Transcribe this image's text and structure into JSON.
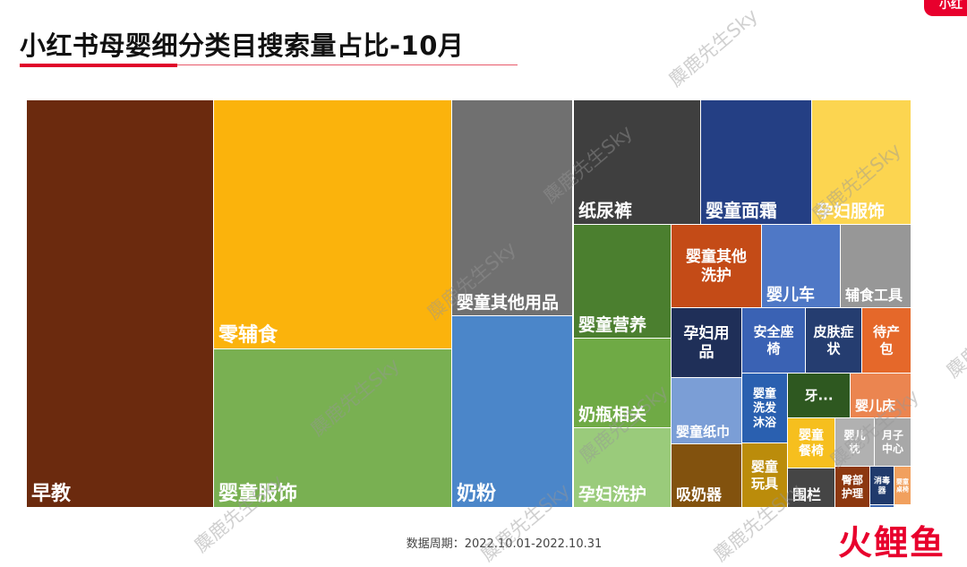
{
  "title": "小红书母婴细分类目搜索量占比-10月",
  "period": "数据周期：2022.10.01-2022.10.31",
  "logo": "火鲤鱼",
  "badge": "小红",
  "watermark": "麋鹿先生Sky",
  "chart_data": {
    "type": "treemap",
    "title": "小红书母婴细分类目搜索量占比-10月",
    "categories": [
      {
        "label": "早教",
        "color": "#6b2a0e"
      },
      {
        "label": "零辅食",
        "color": "#fbb30c"
      },
      {
        "label": "婴童服饰",
        "color": "#79b052"
      },
      {
        "label": "婴童其他用品",
        "color": "#707070"
      },
      {
        "label": "奶粉",
        "color": "#4b86c9"
      },
      {
        "label": "纸尿裤",
        "color": "#3f3f3f"
      },
      {
        "label": "婴童营养",
        "color": "#4b7f2f"
      },
      {
        "label": "奶瓶相关",
        "color": "#6faa45"
      },
      {
        "label": "孕妇洗护",
        "color": "#9acb7b"
      },
      {
        "label": "婴童面霜",
        "color": "#243f84"
      },
      {
        "label": "孕妇服饰",
        "color": "#fcd550"
      },
      {
        "label": "婴童其他\n洗护",
        "color": "#c44b17"
      },
      {
        "label": "婴儿车",
        "color": "#4f78c6"
      },
      {
        "label": "辅食工具",
        "color": "#979797"
      },
      {
        "label": "孕妇用\n品",
        "color": "#1f2f58"
      },
      {
        "label": "安全座\n椅",
        "color": "#3a62b4"
      },
      {
        "label": "皮肤症\n状",
        "color": "#253d70"
      },
      {
        "label": "待产\n包",
        "color": "#e5682a"
      },
      {
        "label": "婴童纸巾",
        "color": "#7b9ed6"
      },
      {
        "label": "婴童\n洗发\n沐浴",
        "color": "#2a60b0"
      },
      {
        "label": "牙...",
        "color": "#2e5820"
      },
      {
        "label": "婴儿床",
        "color": "#eb8550"
      },
      {
        "label": "吸奶器",
        "color": "#82520e"
      },
      {
        "label": "婴童\n餐椅",
        "color": "#f6bf1e"
      },
      {
        "label": "婴儿\n枕",
        "color": "#b1b1b1"
      },
      {
        "label": "月子\n中心",
        "color": "#a8a8a8"
      },
      {
        "label": "婴童\n玩具",
        "color": "#bb8c0b"
      },
      {
        "label": "围栏",
        "color": "#454545"
      },
      {
        "label": "臀部\n护理",
        "color": "#8d3810"
      },
      {
        "label": "消毒\n器",
        "color": "#203a6c"
      },
      {
        "label": "婴童\n桌椅",
        "color": "#f1a05e"
      },
      {
        "label": "",
        "color": "#3864b0"
      }
    ]
  }
}
